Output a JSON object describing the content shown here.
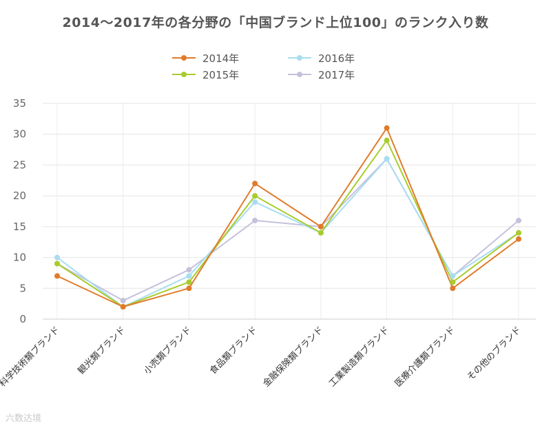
{
  "chart_data": {
    "type": "line",
    "title": "2014〜2017年の各分野の「中国ブランド上位100」のランク入り数",
    "categories": [
      "科学技術類ブランド",
      "観光類ブランド",
      "小売類ブランド",
      "食品類ブランド",
      "金融保険類ブランド",
      "工業製造類ブランド",
      "医療介護類ブランド",
      "その他のブランド"
    ],
    "series": [
      {
        "name": "2014年",
        "color": "#e07b2a",
        "values": [
          7,
          2,
          5,
          22,
          15,
          31,
          5,
          13
        ]
      },
      {
        "name": "2015年",
        "color": "#a8cc2c",
        "values": [
          9,
          2,
          6,
          20,
          14,
          29,
          6,
          14
        ]
      },
      {
        "name": "2016年",
        "color": "#a8dcf0",
        "values": [
          10,
          2,
          7,
          19,
          14,
          26,
          7,
          14
        ]
      },
      {
        "name": "2017年",
        "color": "#c5c1dc",
        "values": [
          9,
          3,
          8,
          16,
          15,
          26,
          7,
          16
        ]
      }
    ],
    "ylim": [
      0,
      35
    ],
    "yticks": [
      0,
      5,
      10,
      15,
      20,
      25,
      30,
      35
    ],
    "xlabel": "",
    "ylabel": "",
    "grid": true,
    "legend": "top-center"
  },
  "watermark": "六数达境"
}
